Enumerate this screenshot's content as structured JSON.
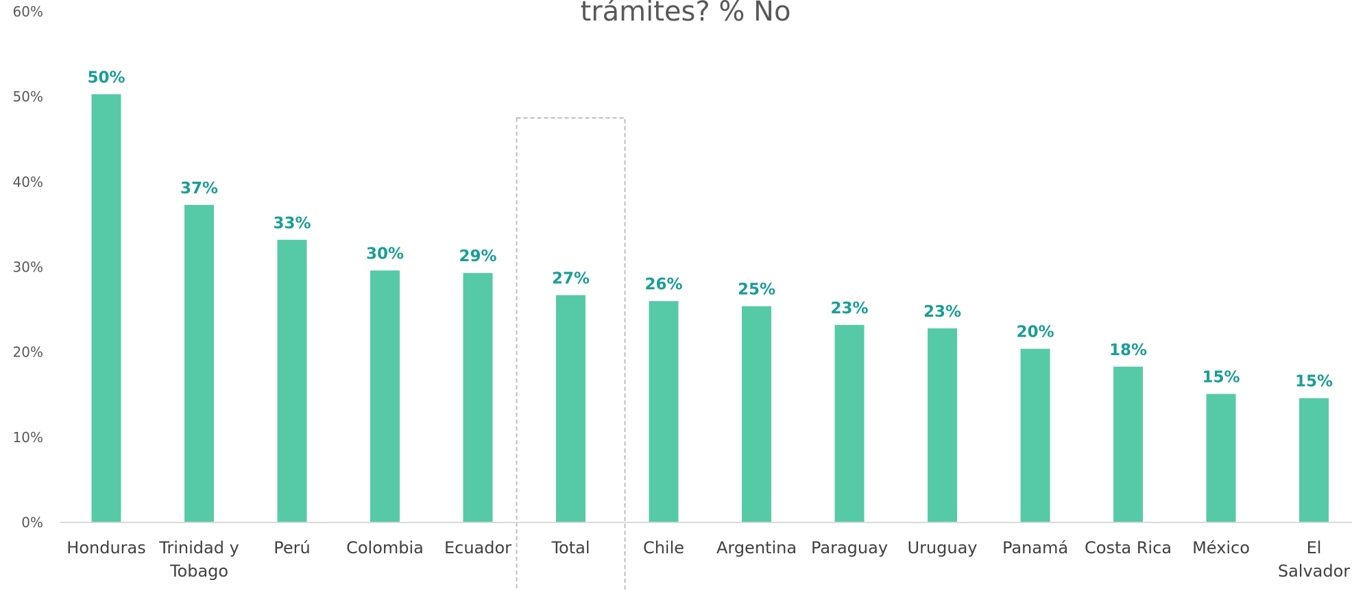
{
  "chart_data": {
    "type": "bar",
    "title": "trámites? % No",
    "categories": [
      "Honduras",
      "Trinidad y Tobago",
      "Perú",
      "Colombia",
      "Ecuador",
      "Total",
      "Chile",
      "Argentina",
      "Paraguay",
      "Uruguay",
      "Panamá",
      "Costa Rica",
      "México",
      "El Salvador"
    ],
    "category_lines": [
      [
        "Honduras"
      ],
      [
        "Trinidad y",
        "Tobago"
      ],
      [
        "Perú"
      ],
      [
        "Colombia"
      ],
      [
        "Ecuador"
      ],
      [
        "Total"
      ],
      [
        "Chile"
      ],
      [
        "Argentina"
      ],
      [
        "Paraguay"
      ],
      [
        "Uruguay"
      ],
      [
        "Panamá"
      ],
      [
        "Costa Rica"
      ],
      [
        "México"
      ],
      [
        "El",
        "Salvador"
      ]
    ],
    "values": [
      50.3,
      37.3,
      33.2,
      29.6,
      29.3,
      26.7,
      26.0,
      25.4,
      23.2,
      22.8,
      20.4,
      18.3,
      15.1,
      14.6
    ],
    "data_labels": [
      "50%",
      "37%",
      "33%",
      "30%",
      "29%",
      "27%",
      "26%",
      "25%",
      "23%",
      "23%",
      "20%",
      "18%",
      "15%",
      "15%"
    ],
    "ylim": [
      0,
      60
    ],
    "yticks": [
      0,
      10,
      20,
      30,
      40,
      50,
      60
    ],
    "ytick_labels": [
      "0%",
      "10%",
      "20%",
      "30%",
      "40%",
      "50%",
      "60%"
    ],
    "highlight_category": "Total",
    "grid": false,
    "legend": "none",
    "colors": {
      "bar": "#56CAA6",
      "data_label": "#1A9E96",
      "axis": "#D9D9D9",
      "highlight_box": "#BFBFBF"
    }
  }
}
